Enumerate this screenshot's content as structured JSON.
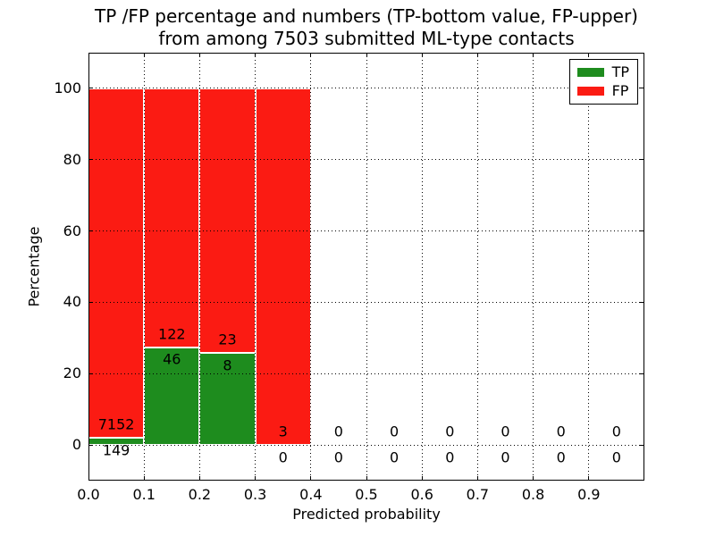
{
  "title": {
    "line1": "TP /FP percentage and numbers (TP-bottom value, FP-upper)",
    "line2": "from among 7503 submitted ML-type contacts"
  },
  "axes": {
    "xlabel": "Predicted probability",
    "ylabel": "Percentage"
  },
  "legend": {
    "items": [
      {
        "label": "TP",
        "color": "#1e8c1e"
      },
      {
        "label": "FP",
        "color": "#fb1b13"
      }
    ]
  },
  "chart_data": {
    "type": "bar",
    "subtype": "stacked-percentage-histogram",
    "title": "TP /FP percentage and numbers (TP-bottom value, FP-upper)\nfrom among 7503 submitted ML-type contacts",
    "xlabel": "Predicted probability",
    "ylabel": "Percentage",
    "total_contacts": 7503,
    "categories": [
      "0.0-0.1",
      "0.1-0.2",
      "0.2-0.3",
      "0.3-0.4",
      "0.4-0.5",
      "0.5-0.6",
      "0.6-0.7",
      "0.7-0.8",
      "0.8-0.9",
      "0.9-1.0"
    ],
    "bin_starts": [
      0.0,
      0.1,
      0.2,
      0.3,
      0.4,
      0.5,
      0.6,
      0.7,
      0.8,
      0.9
    ],
    "bin_width": 0.1,
    "series": [
      {
        "name": "TP",
        "color": "#1e8c1e",
        "counts": [
          149,
          46,
          8,
          0,
          0,
          0,
          0,
          0,
          0,
          0
        ]
      },
      {
        "name": "FP",
        "color": "#fb1b13",
        "counts": [
          7152,
          122,
          23,
          3,
          0,
          0,
          0,
          0,
          0,
          0
        ]
      }
    ],
    "percent_tp": [
      2.04,
      27.38,
      25.81,
      0.0,
      0.0,
      0.0,
      0.0,
      0.0,
      0.0,
      0.0
    ],
    "percent_fp": [
      97.96,
      72.62,
      74.19,
      100.0,
      0.0,
      0.0,
      0.0,
      0.0,
      0.0,
      0.0
    ],
    "xticks": [
      "0.0",
      "0.1",
      "0.2",
      "0.3",
      "0.4",
      "0.5",
      "0.6",
      "0.7",
      "0.8",
      "0.9"
    ],
    "yticks": [
      0,
      20,
      40,
      60,
      80,
      100
    ],
    "xlim": [
      0.0,
      1.0
    ],
    "ylim": [
      -10,
      110
    ],
    "grid": true,
    "grid_style": "dotted",
    "legend_position": "upper right"
  }
}
